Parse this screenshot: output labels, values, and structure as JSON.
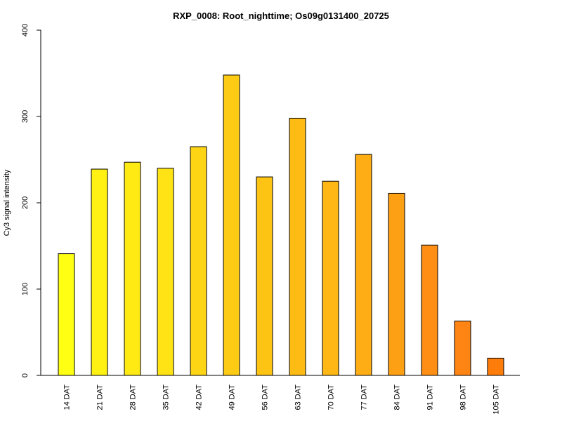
{
  "chart_data": {
    "type": "bar",
    "title": "RXP_0008: Root_nighttime; Os09g0131400_20725",
    "xlabel": "",
    "ylabel": "Cy3 signal intensity",
    "ylim": [
      0,
      400
    ],
    "yticks": [
      0,
      100,
      200,
      300,
      400
    ],
    "grid": false,
    "categories": [
      "14 DAT",
      "21 DAT",
      "28 DAT",
      "35 DAT",
      "42 DAT",
      "49 DAT",
      "56 DAT",
      "63 DAT",
      "70 DAT",
      "77 DAT",
      "84 DAT",
      "91 DAT",
      "98 DAT",
      "105 DAT"
    ],
    "values": [
      141,
      239,
      247,
      240,
      265,
      348,
      230,
      298,
      225,
      256,
      211,
      151,
      63,
      20
    ],
    "colors": [
      "#ffff14",
      "#fff114",
      "#ffea14",
      "#ffe314",
      "#fed514",
      "#fecb14",
      "#fec414",
      "#febb14",
      "#feb714",
      "#feae14",
      "#fea014",
      "#fe8f14",
      "#fe8514",
      "#fe7d0a"
    ]
  }
}
